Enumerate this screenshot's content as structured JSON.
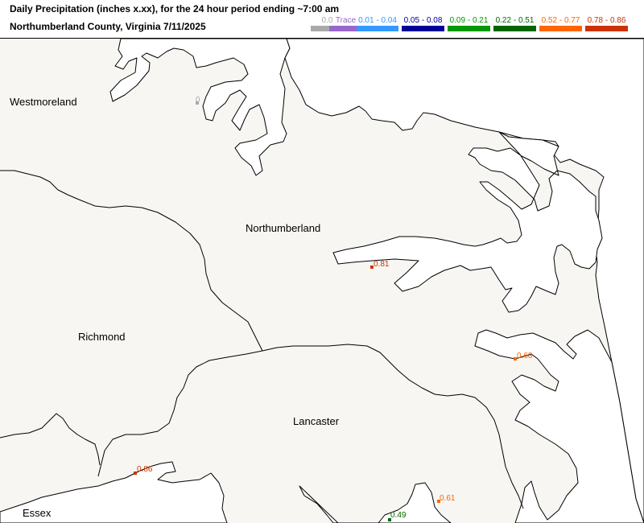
{
  "header": {
    "title": "Daily Precipitation (inches  x.xx),  for the 24 hour period ending ~7:00 am",
    "subtitle": "Northumberland County, Virginia  7/11/2025"
  },
  "legend": [
    {
      "label": "0.0",
      "color": "#a9a9a9"
    },
    {
      "label": "Trace",
      "color": "#9966cc"
    },
    {
      "label": "0.01 - 0.04",
      "color": "#3399ff"
    },
    {
      "label": "0.05 - 0.08",
      "color": "#000099"
    },
    {
      "label": "0.09 - 0.21",
      "color": "#009900"
    },
    {
      "label": "0.22 - 0.51",
      "color": "#006600"
    },
    {
      "label": "0.52 - 0.77",
      "color": "#ff6600"
    },
    {
      "label": "0.78 - 0.86",
      "color": "#cc3300"
    }
  ],
  "counties": {
    "westmoreland": "Westmoreland",
    "northumberland": "Northumberland",
    "richmond": "Richmond",
    "lancaster": "Lancaster",
    "essex": "Essex"
  },
  "stations": [
    {
      "value": "0",
      "color": "#a9a9a9"
    },
    {
      "value": "0.81",
      "color": "#cc3300"
    },
    {
      "value": "0.68",
      "color": "#ff6600"
    },
    {
      "value": "0.86",
      "color": "#cc3300"
    },
    {
      "value": "0.61",
      "color": "#ff6600"
    },
    {
      "value": "0.49",
      "color": "#006600"
    }
  ],
  "colors": {
    "land": "#f8f6f2",
    "water": "#ffffff",
    "border": "#000000"
  }
}
